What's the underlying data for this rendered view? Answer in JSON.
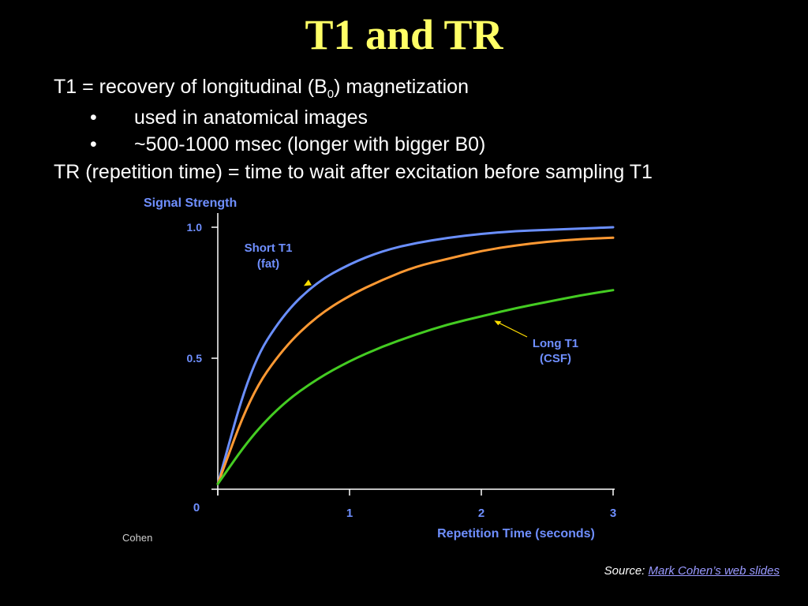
{
  "slide": {
    "title": "T1 and TR",
    "line1_prefix": "T1 = recovery of longitudinal (B",
    "line1_sub": "0",
    "line1_suffix": ") magnetization",
    "bullet_symbol": "•",
    "bullets": [
      "used in anatomical images",
      "~500-1000 msec (longer with bigger B0)"
    ],
    "line4": "TR (repetition time) = time to wait after excitation before sampling T1",
    "credit": "Cohen",
    "source_label": "Source:",
    "source_link": "Mark Cohen’s web slides"
  },
  "colors": {
    "title": "#ffff66",
    "axis_text": "#6f8fff",
    "axis_line": "#ffffff",
    "short_t1": "#6a8fff",
    "medium_t1": "#ff9933",
    "long_t1": "#44cc22",
    "arrow": "#ffdd00",
    "link": "#9999ff"
  },
  "chart_data": {
    "type": "line",
    "ylabel": "Signal Strength",
    "xlabel": "Repetition Time (seconds)",
    "xlim": [
      0,
      3
    ],
    "ylim": [
      0,
      1.0
    ],
    "x_ticks": [
      "1",
      "2",
      "3"
    ],
    "x_origin_label": "0",
    "y_ticks": [
      "1.0",
      "0.5"
    ],
    "grid": false,
    "x": [
      0,
      0.25,
      0.5,
      0.75,
      1.0,
      1.25,
      1.5,
      1.75,
      2.0,
      2.25,
      2.5,
      2.75,
      3.0
    ],
    "series": [
      {
        "values": [
          0.02,
          0.47,
          0.67,
          0.79,
          0.86,
          0.91,
          0.94,
          0.96,
          0.975,
          0.985,
          0.99,
          0.995,
          1.0
        ]
      },
      {
        "values": [
          0.02,
          0.36,
          0.54,
          0.66,
          0.74,
          0.8,
          0.85,
          0.88,
          0.91,
          0.93,
          0.945,
          0.955,
          0.96
        ]
      },
      {
        "values": [
          0.02,
          0.2,
          0.33,
          0.42,
          0.49,
          0.545,
          0.59,
          0.63,
          0.66,
          0.69,
          0.715,
          0.74,
          0.76
        ]
      }
    ],
    "annotations": [
      {
        "lines": [
          "Short T1",
          "(fat)"
        ],
        "target_x": 0.7,
        "target_y": 0.77
      },
      {
        "lines": [
          "Long T1",
          "(CSF)"
        ],
        "target_x": 2.05,
        "target_y": 0.65
      }
    ]
  }
}
